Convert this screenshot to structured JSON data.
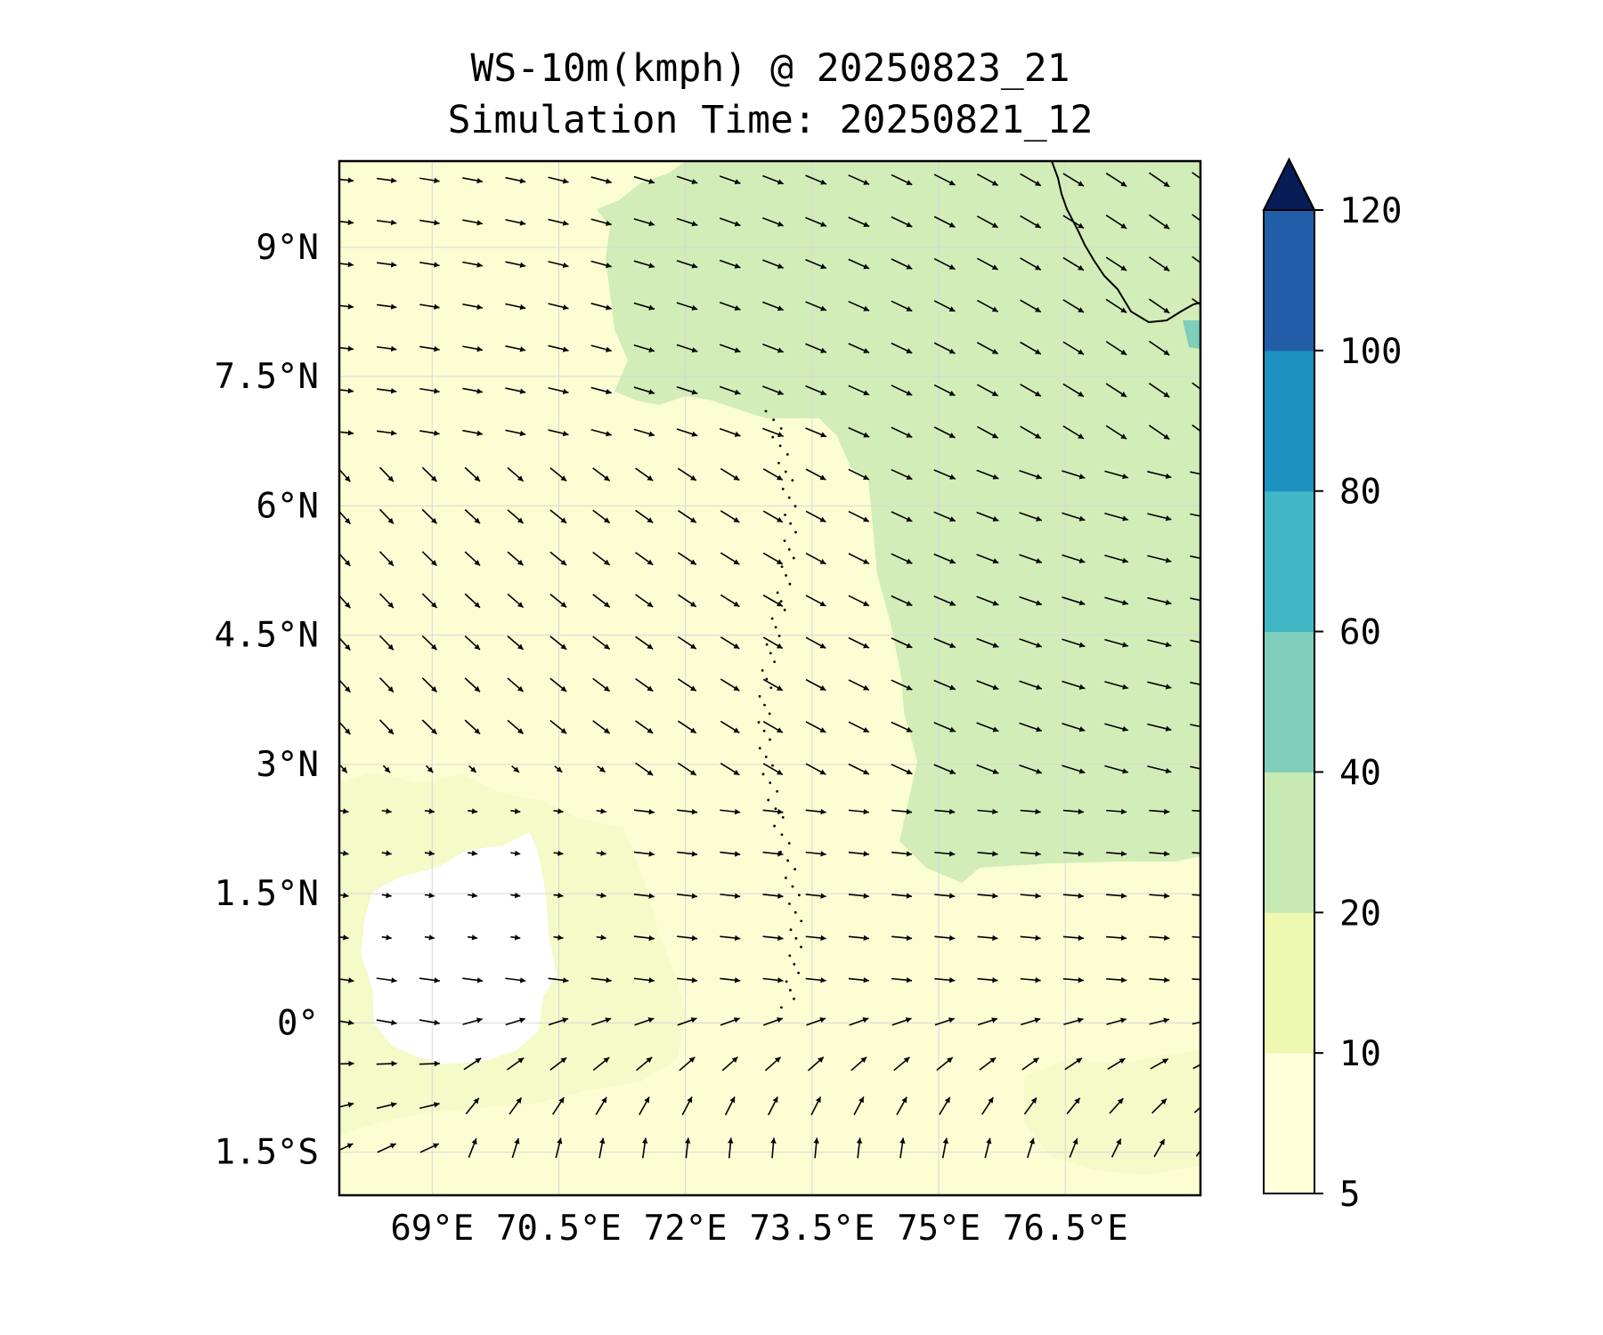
{
  "title": {
    "line1": "WS-10m(kmph) @ 20250823_21",
    "line2": "Simulation Time: 20250821_12"
  },
  "map": {
    "lon_range": [
      67.9,
      78.1
    ],
    "lat_range": [
      -2.0,
      10.0
    ],
    "lat_ticks": [
      {
        "value": 9,
        "label": "9°N"
      },
      {
        "value": 7.5,
        "label": "7.5°N"
      },
      {
        "value": 6,
        "label": "6°N"
      },
      {
        "value": 4.5,
        "label": "4.5°N"
      },
      {
        "value": 3,
        "label": "3°N"
      },
      {
        "value": 1.5,
        "label": "1.5°N"
      },
      {
        "value": 0,
        "label": "0°"
      },
      {
        "value": -1.5,
        "label": "1.5°S"
      }
    ],
    "lon_ticks": [
      {
        "value": 69,
        "label": "69°E"
      },
      {
        "value": 70.5,
        "label": "70.5°E"
      },
      {
        "value": 72,
        "label": "72°E"
      },
      {
        "value": 73.5,
        "label": "73.5°E"
      },
      {
        "value": 75,
        "label": "75°E"
      },
      {
        "value": 76.5,
        "label": "76.5°E"
      }
    ],
    "grid": true
  },
  "colorbar": {
    "levels": [
      5,
      10,
      20,
      40,
      60,
      80,
      100,
      120
    ],
    "colors": [
      "#ffffd9",
      "#edf8b1",
      "#c7e9b4",
      "#7fcdbb",
      "#41b6c4",
      "#1d91c0",
      "#225ea8",
      "#081d58"
    ],
    "extend": "max",
    "extend_color": "#081d58"
  },
  "colors": {
    "calm": "#ffffff",
    "light": "#fbfdd3",
    "moderate": "#eef8bf",
    "strong": "#d2edb8",
    "coast": "#000000",
    "arrow": "#000000"
  }
}
